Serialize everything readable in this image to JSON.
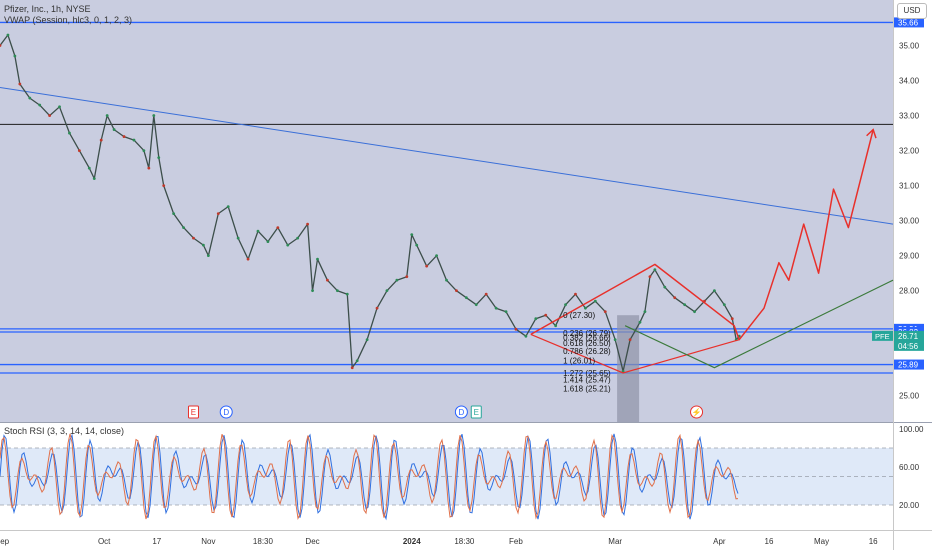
{
  "header": {
    "symbol_line": "Pfizer, Inc., 1h, NYSE",
    "indicator_line": "VWAP (Session, hlc3, 0, 1, 2, 3)",
    "currency": "USD"
  },
  "rsi_header": "Stoch RSI (3, 3, 14, 14, close)",
  "colors": {
    "panel_bg": "#c9cde0",
    "horizontal_line": "#2962ff",
    "resistance": "#1c1c1c",
    "trendline": "#3a6fd8",
    "projection": "#e8302b",
    "green_path": "#3b7a3b",
    "price_badge": "#26a69a",
    "k_line": "#2f6fe0",
    "d_line": "#e0704a"
  },
  "chart_data": {
    "type": "line",
    "title": "Pfizer, Inc., 1h, NYSE",
    "y_axis": {
      "unit": "USD",
      "ticks": [
        {
          "value": 35.0,
          "label": "35.00"
        },
        {
          "value": 34.0,
          "label": "34.00"
        },
        {
          "value": 33.0,
          "label": "33.00"
        },
        {
          "value": 32.0,
          "label": "32.00"
        },
        {
          "value": 31.0,
          "label": "31.00"
        },
        {
          "value": 30.0,
          "label": "30.00"
        },
        {
          "value": 29.0,
          "label": "29.00"
        },
        {
          "value": 28.0,
          "label": "28.00"
        },
        {
          "value": 25.0,
          "label": "25.00"
        }
      ]
    },
    "x_axis": {
      "ticks": [
        {
          "x": 0.02,
          "label": "Sep"
        },
        {
          "x": 1.05,
          "label": "Oct"
        },
        {
          "x": 1.58,
          "label": "17"
        },
        {
          "x": 2.1,
          "label": "Nov"
        },
        {
          "x": 2.65,
          "label": "18:30"
        },
        {
          "x": 3.15,
          "label": "Dec"
        },
        {
          "x": 4.15,
          "label": "2024"
        },
        {
          "x": 4.68,
          "label": "18:30"
        },
        {
          "x": 5.2,
          "label": "Feb"
        },
        {
          "x": 6.2,
          "label": "Mar"
        },
        {
          "x": 7.25,
          "label": "Apr"
        },
        {
          "x": 7.75,
          "label": "16"
        },
        {
          "x": 8.28,
          "label": "May"
        },
        {
          "x": 8.8,
          "label": "16"
        }
      ]
    },
    "price_labels": [
      {
        "value": 35.66,
        "label": "35.66",
        "color": "#2962ff"
      },
      {
        "value": 26.91,
        "label": "26.91",
        "color": "#2962ff"
      },
      {
        "value": 26.82,
        "label": "26.82",
        "color": "#2962ff"
      },
      {
        "value": 26.71,
        "label": "26.71",
        "sub": "04:56",
        "tag": "PFE",
        "color": "#26a69a"
      },
      {
        "value": 25.89,
        "label": "25.89",
        "color": "#2962ff"
      }
    ],
    "horizontal_lines": [
      35.66,
      26.91,
      26.82,
      25.89,
      25.65
    ],
    "resistance_line": 32.75,
    "price_series": [
      [
        0.0,
        35.0
      ],
      [
        0.08,
        35.3
      ],
      [
        0.15,
        34.7
      ],
      [
        0.2,
        33.9
      ],
      [
        0.3,
        33.5
      ],
      [
        0.4,
        33.3
      ],
      [
        0.5,
        33.0
      ],
      [
        0.6,
        33.25
      ],
      [
        0.7,
        32.5
      ],
      [
        0.8,
        32.0
      ],
      [
        0.9,
        31.5
      ],
      [
        0.95,
        31.2
      ],
      [
        1.02,
        32.3
      ],
      [
        1.08,
        33.0
      ],
      [
        1.15,
        32.6
      ],
      [
        1.25,
        32.4
      ],
      [
        1.35,
        32.3
      ],
      [
        1.45,
        32.0
      ],
      [
        1.5,
        31.5
      ],
      [
        1.55,
        33.0
      ],
      [
        1.6,
        31.8
      ],
      [
        1.65,
        31.0
      ],
      [
        1.75,
        30.2
      ],
      [
        1.85,
        29.8
      ],
      [
        1.95,
        29.5
      ],
      [
        2.05,
        29.3
      ],
      [
        2.1,
        29.0
      ],
      [
        2.2,
        30.2
      ],
      [
        2.3,
        30.4
      ],
      [
        2.4,
        29.5
      ],
      [
        2.5,
        28.9
      ],
      [
        2.6,
        29.7
      ],
      [
        2.7,
        29.4
      ],
      [
        2.8,
        29.8
      ],
      [
        2.9,
        29.3
      ],
      [
        3.0,
        29.5
      ],
      [
        3.1,
        29.9
      ],
      [
        3.15,
        28.0
      ],
      [
        3.2,
        28.9
      ],
      [
        3.3,
        28.3
      ],
      [
        3.4,
        28.0
      ],
      [
        3.5,
        27.9
      ],
      [
        3.55,
        25.8
      ],
      [
        3.6,
        26.0
      ],
      [
        3.7,
        26.6
      ],
      [
        3.8,
        27.5
      ],
      [
        3.9,
        28.0
      ],
      [
        4.0,
        28.3
      ],
      [
        4.1,
        28.4
      ],
      [
        4.15,
        29.6
      ],
      [
        4.2,
        29.3
      ],
      [
        4.3,
        28.7
      ],
      [
        4.4,
        29.0
      ],
      [
        4.5,
        28.3
      ],
      [
        4.6,
        28.0
      ],
      [
        4.7,
        27.8
      ],
      [
        4.8,
        27.6
      ],
      [
        4.9,
        27.9
      ],
      [
        5.0,
        27.5
      ],
      [
        5.1,
        27.4
      ],
      [
        5.2,
        26.9
      ],
      [
        5.3,
        26.7
      ],
      [
        5.4,
        27.2
      ],
      [
        5.5,
        27.3
      ],
      [
        5.6,
        27.0
      ],
      [
        5.7,
        27.6
      ],
      [
        5.8,
        27.9
      ],
      [
        5.9,
        27.5
      ],
      [
        6.0,
        27.7
      ],
      [
        6.1,
        27.4
      ],
      [
        6.2,
        26.6
      ],
      [
        6.28,
        25.7
      ],
      [
        6.35,
        26.6
      ],
      [
        6.45,
        27.1
      ],
      [
        6.5,
        27.4
      ],
      [
        6.55,
        28.4
      ],
      [
        6.6,
        28.6
      ],
      [
        6.7,
        28.1
      ],
      [
        6.8,
        27.8
      ],
      [
        6.9,
        27.6
      ],
      [
        7.0,
        27.4
      ],
      [
        7.1,
        27.7
      ],
      [
        7.2,
        28.0
      ],
      [
        7.3,
        27.6
      ],
      [
        7.38,
        27.2
      ],
      [
        7.42,
        26.6
      ],
      [
        7.45,
        26.7
      ]
    ],
    "trendline": [
      [
        0.0,
        33.8
      ],
      [
        9.0,
        29.9
      ]
    ],
    "projection_path": [
      [
        5.35,
        26.75
      ],
      [
        6.6,
        28.75
      ],
      [
        7.4,
        27.0
      ],
      [
        7.45,
        26.6
      ],
      [
        7.7,
        27.5
      ],
      [
        7.85,
        28.8
      ],
      [
        7.95,
        28.3
      ],
      [
        8.1,
        29.9
      ],
      [
        8.25,
        28.5
      ],
      [
        8.4,
        30.9
      ],
      [
        8.55,
        29.8
      ],
      [
        8.8,
        32.6
      ]
    ],
    "red_triangle": [
      [
        5.35,
        26.75
      ],
      [
        6.28,
        25.65
      ],
      [
        7.45,
        26.6
      ]
    ],
    "green_path": [
      [
        6.3,
        27.0
      ],
      [
        7.2,
        25.8
      ],
      [
        9.0,
        28.3
      ]
    ],
    "fib_labels": [
      {
        "value": 27.3,
        "label": "0 (27.30)"
      },
      {
        "value": 26.79,
        "label": "0.236 (26.79)"
      },
      {
        "value": 26.66,
        "label": "0.382 (26.66)"
      },
      {
        "value": 26.5,
        "label": "0.618 (26.50)"
      },
      {
        "value": 26.28,
        "label": "0.786 (26.28)"
      },
      {
        "value": 26.01,
        "label": "1 (26.01)"
      },
      {
        "value": 25.65,
        "label": "1.272 (25.65)"
      },
      {
        "value": 25.47,
        "label": "1.414 (25.47)"
      },
      {
        "value": 25.21,
        "label": "1.618 (25.21)"
      }
    ],
    "event_markers": [
      {
        "x": 1.95,
        "label": "E",
        "color": "#e8302b"
      },
      {
        "x": 2.28,
        "label": "D",
        "color": "#2962ff"
      },
      {
        "x": 4.65,
        "label": "D",
        "color": "#2962ff"
      },
      {
        "x": 4.8,
        "label": "E",
        "color": "#26a69a"
      },
      {
        "x": 7.02,
        "label": "⚡",
        "color": "#e8302b"
      }
    ],
    "rsi": {
      "levels": [
        80,
        50,
        20
      ],
      "ticks": [
        {
          "value": 100,
          "label": "100.00"
        },
        {
          "value": 60,
          "label": "60.00"
        },
        {
          "value": 20,
          "label": "20.00"
        }
      ]
    }
  }
}
